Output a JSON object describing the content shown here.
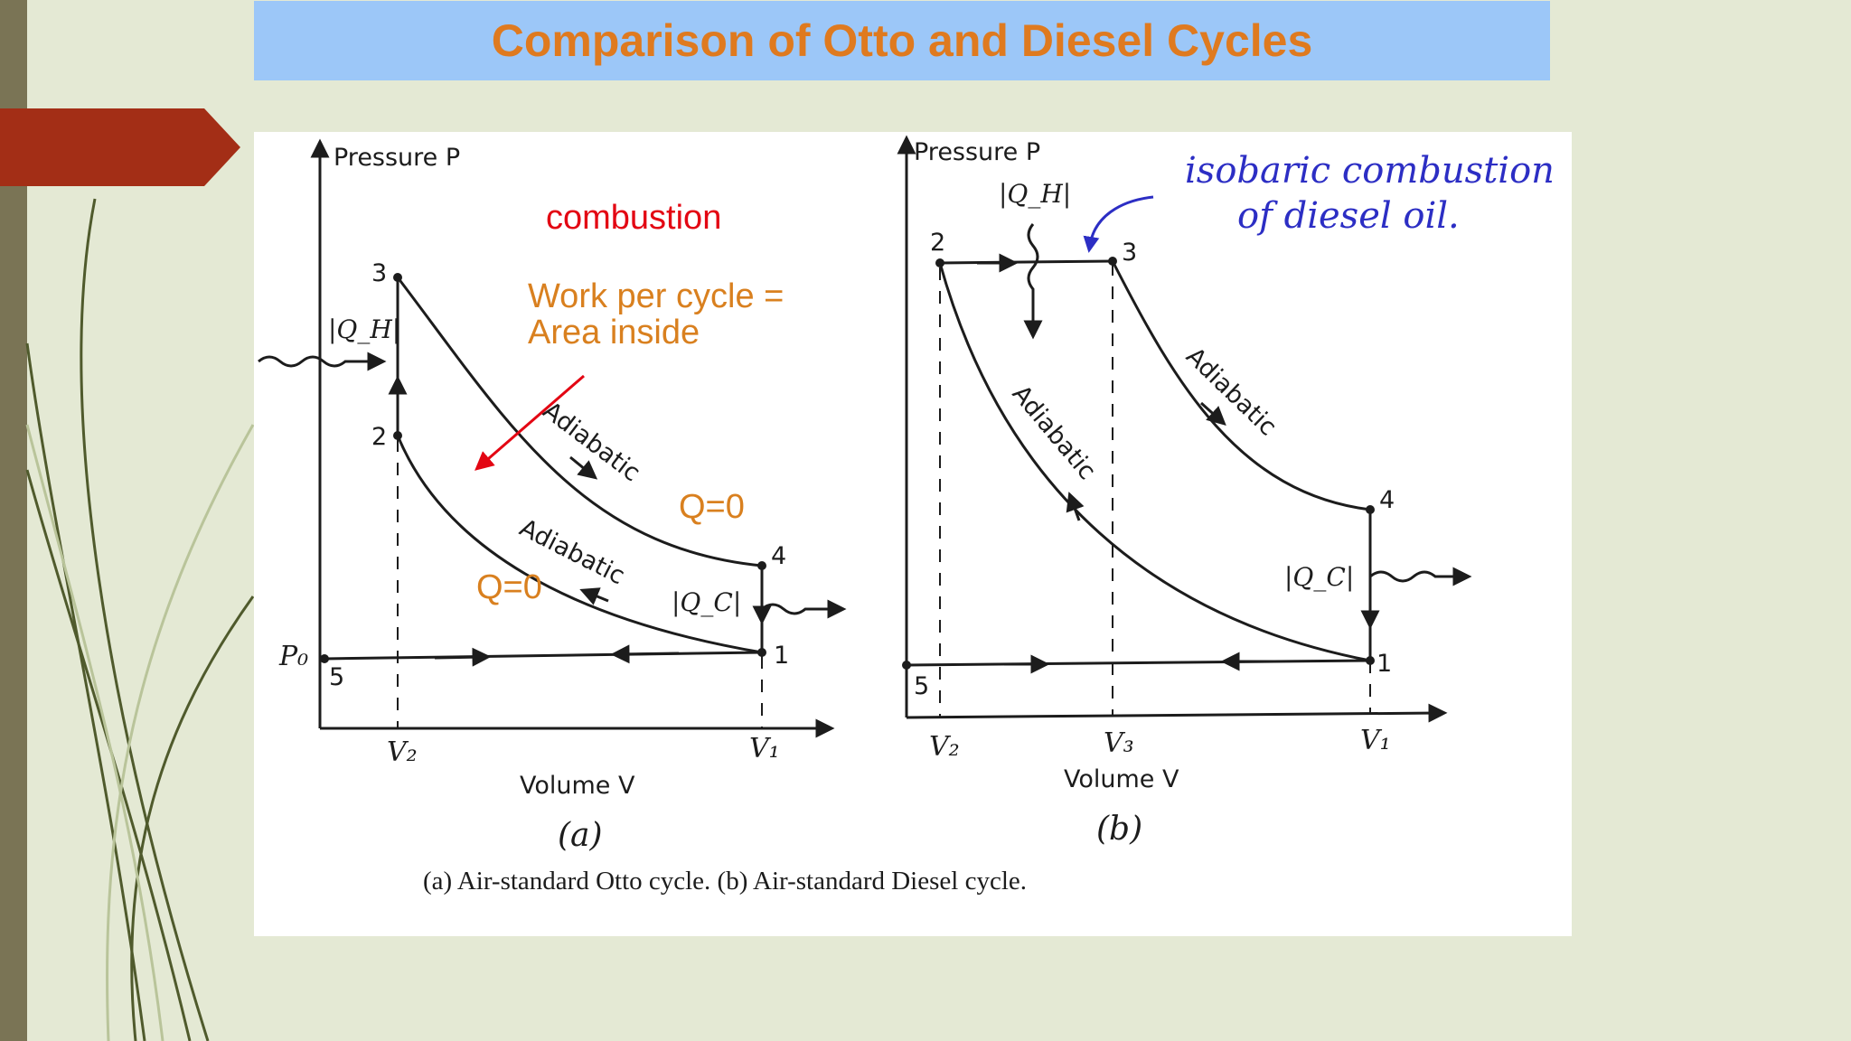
{
  "slide": {
    "title": "Comparison of Otto and Diesel Cycles"
  },
  "colors": {
    "title_text": "#df7a1f",
    "title_bar": "#9cc7f8",
    "background": "#e4e9d4",
    "accent_tab": "#a32e16",
    "annotation_red": "#e30613",
    "annotation_orange": "#d9801f",
    "handwriting_blue": "#2c2ec4"
  },
  "figure": {
    "panel_a": {
      "axis_y": "Pressure P",
      "axis_x": "Volume V",
      "tick_v2": "V₂",
      "tick_v1": "V₁",
      "p0": "P₀",
      "heat_in": "|Q_H|",
      "heat_out": "|Q_C|",
      "adiabatic_upper": "Adiabatic",
      "adiabatic_lower": "Adiabatic",
      "points": [
        "1",
        "2",
        "3",
        "4",
        "5"
      ],
      "label": "(a)"
    },
    "panel_b": {
      "axis_y": "Pressure P",
      "axis_x": "Volume V",
      "tick_v2": "V₂",
      "tick_v3": "V₃",
      "tick_v1": "V₁",
      "heat_in": "|Q_H|",
      "heat_out": "|Q_C|",
      "adiabatic_left": "Adiabatic",
      "adiabatic_right": "Adiabatic",
      "points": [
        "1",
        "2",
        "3",
        "4",
        "5"
      ],
      "label": "(b)"
    },
    "caption": "(a) Air-standard Otto cycle. (b) Air-standard Diesel cycle."
  },
  "annotations": {
    "combustion": "combustion",
    "work_line1": "Work per cycle =",
    "work_line2": "Area inside",
    "q0_upper": "Q=0",
    "q0_lower": "Q=0",
    "hand_line1": "isobaric combustion",
    "hand_line2": "of diesel oil."
  }
}
